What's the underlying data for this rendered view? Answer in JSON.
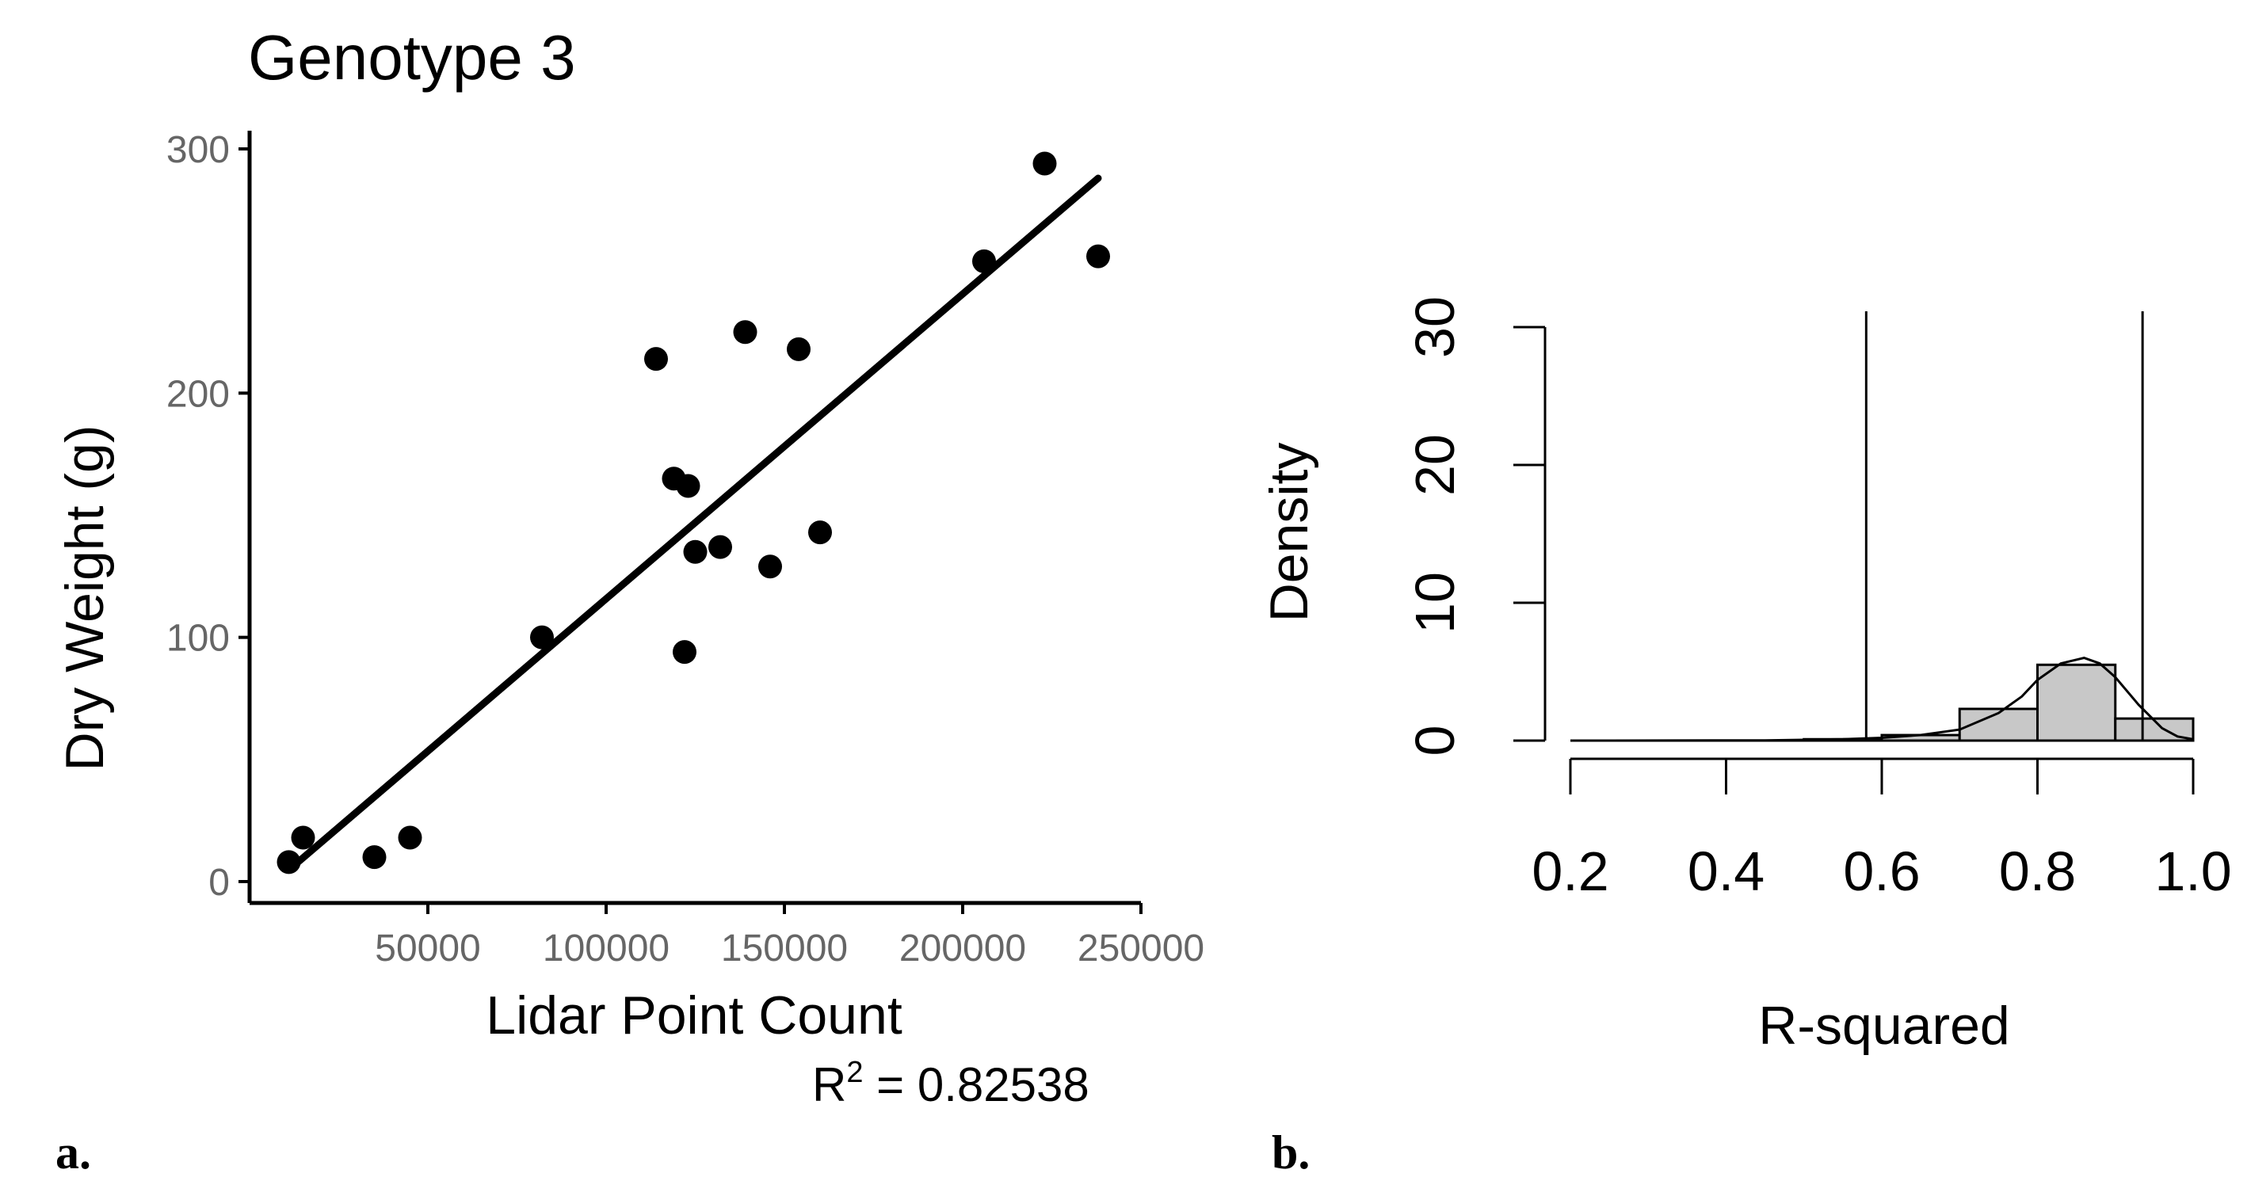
{
  "chart_data": [
    {
      "type": "scatter",
      "panel_label": "a.",
      "title": "Genotype 3",
      "xlabel": "Lidar Point Count",
      "ylabel": "Dry Weight (g)",
      "xlim": [
        0,
        250000
      ],
      "ylim": [
        0,
        300
      ],
      "x_ticks": [
        {
          "value": 50000,
          "label": "50000"
        },
        {
          "value": 100000,
          "label": "100000"
        },
        {
          "value": 150000,
          "label": "150000"
        },
        {
          "value": 200000,
          "label": "200000"
        },
        {
          "value": 250000,
          "label": "250000"
        }
      ],
      "y_ticks": [
        {
          "value": 0,
          "label": "0"
        },
        {
          "value": 100,
          "label": "100"
        },
        {
          "value": 200,
          "label": "200"
        },
        {
          "value": 300,
          "label": "300"
        }
      ],
      "points": [
        {
          "x": 11000,
          "y": 8
        },
        {
          "x": 15000,
          "y": 18
        },
        {
          "x": 35000,
          "y": 10
        },
        {
          "x": 45000,
          "y": 18
        },
        {
          "x": 82000,
          "y": 100
        },
        {
          "x": 114000,
          "y": 214
        },
        {
          "x": 119000,
          "y": 165
        },
        {
          "x": 122000,
          "y": 94
        },
        {
          "x": 123000,
          "y": 162
        },
        {
          "x": 125000,
          "y": 135
        },
        {
          "x": 132000,
          "y": 137
        },
        {
          "x": 139000,
          "y": 225
        },
        {
          "x": 146000,
          "y": 129
        },
        {
          "x": 154000,
          "y": 218
        },
        {
          "x": 160000,
          "y": 143
        },
        {
          "x": 206000,
          "y": 254
        },
        {
          "x": 223000,
          "y": 294
        },
        {
          "x": 238000,
          "y": 256
        }
      ],
      "fit_line": {
        "x": [
          12000,
          238000
        ],
        "y": [
          6,
          288
        ]
      },
      "annotation": {
        "prefix": "R",
        "superscript": "2",
        "text": " =  0.82538"
      },
      "grid": false
    },
    {
      "type": "bar",
      "subtype": "histogram",
      "panel_label": "b.",
      "xlabel": "R-squared",
      "ylabel": "Density",
      "xlim": [
        0.2,
        1.0
      ],
      "ylim": [
        0,
        30
      ],
      "x_ticks": [
        {
          "value": 0.2,
          "label": "0.2"
        },
        {
          "value": 0.4,
          "label": "0.4"
        },
        {
          "value": 0.6,
          "label": "0.6"
        },
        {
          "value": 0.8,
          "label": "0.8"
        },
        {
          "value": 1.0,
          "label": "1.0"
        }
      ],
      "y_ticks": [
        {
          "value": 0,
          "label": "0"
        },
        {
          "value": 10,
          "label": "10"
        },
        {
          "value": 20,
          "label": "20"
        },
        {
          "value": 30,
          "label": "30"
        }
      ],
      "bins": [
        {
          "start": 0.2,
          "end": 0.3,
          "density": 0
        },
        {
          "start": 0.3,
          "end": 0.4,
          "density": 0
        },
        {
          "start": 0.4,
          "end": 0.5,
          "density": 0
        },
        {
          "start": 0.5,
          "end": 0.6,
          "density": 0.1
        },
        {
          "start": 0.6,
          "end": 0.7,
          "density": 0.4
        },
        {
          "start": 0.7,
          "end": 0.8,
          "density": 2.3
        },
        {
          "start": 0.8,
          "end": 0.9,
          "density": 5.5
        },
        {
          "start": 0.9,
          "end": 1.0,
          "density": 1.6
        }
      ],
      "density_curve": {
        "x": [
          0.2,
          0.45,
          0.55,
          0.6,
          0.65,
          0.7,
          0.75,
          0.78,
          0.8,
          0.83,
          0.86,
          0.88,
          0.9,
          0.93,
          0.96,
          0.98,
          1.0
        ],
        "y": [
          0,
          0.02,
          0.1,
          0.2,
          0.4,
          0.8,
          2.0,
          3.2,
          4.4,
          5.6,
          6.0,
          5.6,
          4.6,
          2.6,
          0.9,
          0.3,
          0.1
        ]
      },
      "vlines": [
        0.58,
        0.935
      ],
      "grid": false
    }
  ]
}
